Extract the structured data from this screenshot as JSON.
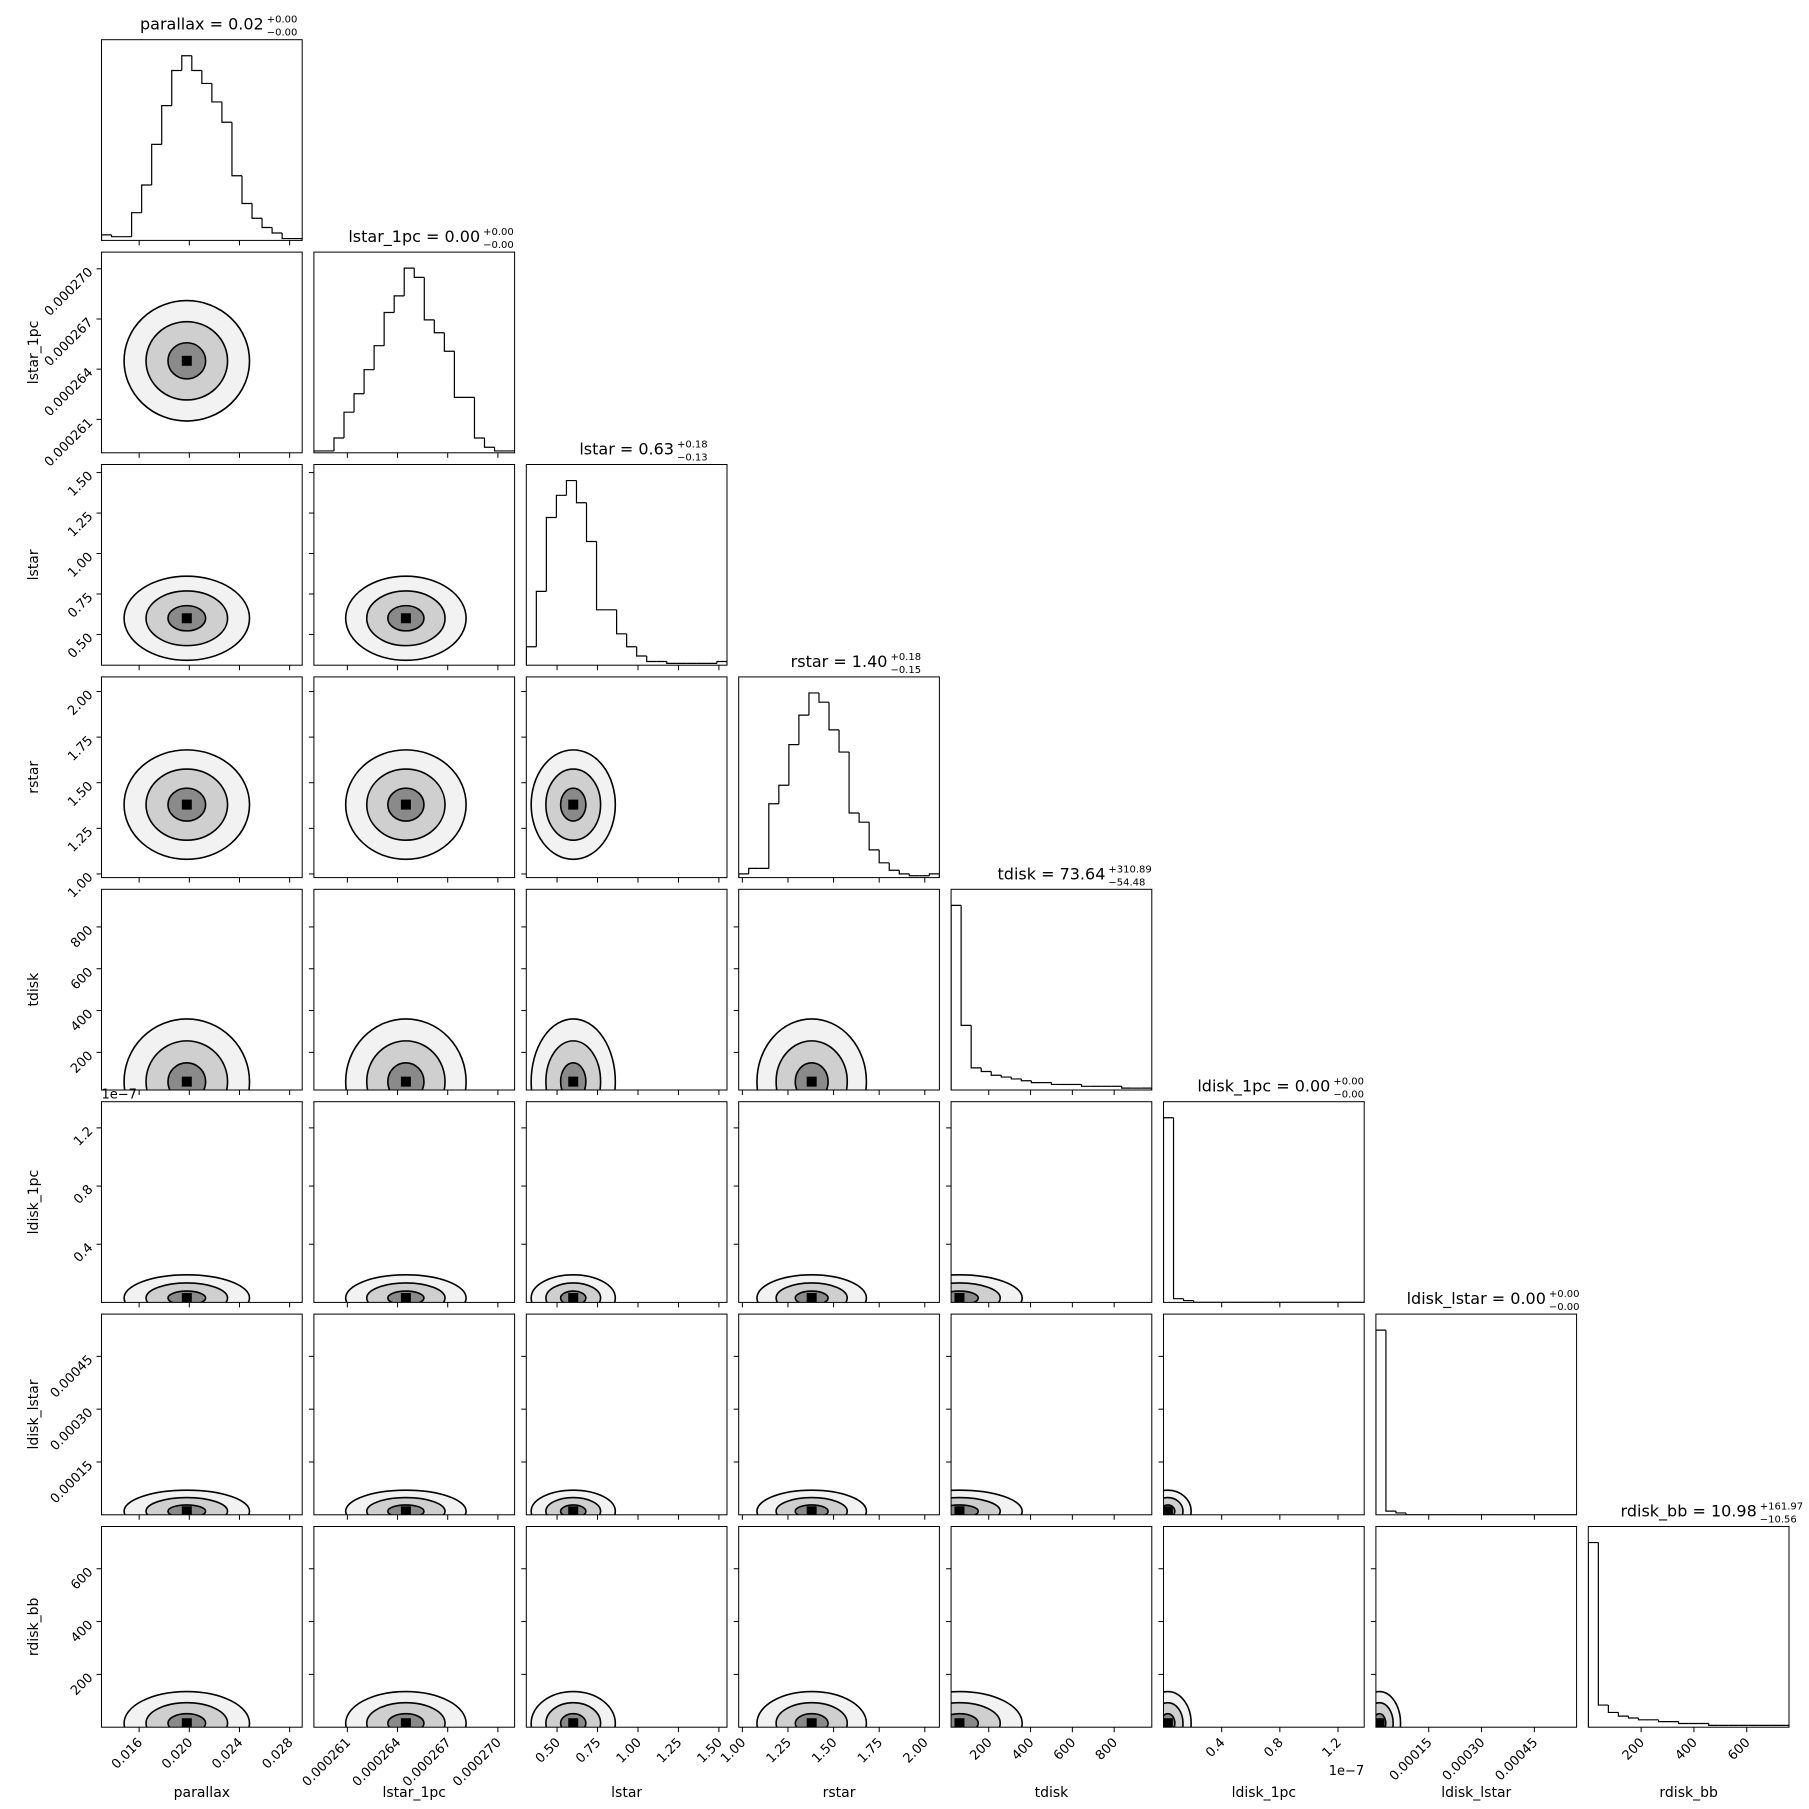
{
  "chart_data": {
    "type": "corner",
    "params": [
      {
        "name": "parallax",
        "title": "parallax = 0.02",
        "title_plus": "+0.00",
        "title_minus": "−0.00",
        "lim": [
          0.013,
          0.029
        ],
        "ticks": [
          0.016,
          {
            "value": 0.02,
            "label": "0.020"
          },
          0.024,
          0.028
        ],
        "bins": [
          0.013,
          0.0138,
          0.0146,
          0.0154,
          0.0162,
          0.017,
          0.0178,
          0.0186,
          0.0194,
          0.0202,
          0.021,
          0.0218,
          0.0226,
          0.0234,
          0.0242,
          0.025,
          0.0258,
          0.0266,
          0.0274,
          0.0282,
          0.029
        ],
        "counts": [
          3,
          2,
          2,
          15,
          30,
          52,
          73,
          92,
          100,
          92,
          85,
          75,
          64,
          35,
          20,
          12,
          7,
          4,
          1,
          1
        ],
        "peak": 0.0198,
        "spread": 0.0025
      },
      {
        "name": "lstar_1pc",
        "title": "lstar_1pc = 0.00",
        "title_plus": "+0.00",
        "title_minus": "−0.00",
        "lim": [
          0.000259,
          0.000271
        ],
        "ticks": [
          0.000261,
          0.000264,
          0.000267,
          {
            "value": 0.00027,
            "label": "0.000270"
          }
        ],
        "bins": [
          0.000259,
          0.0002596,
          0.0002602,
          0.0002608,
          0.0002614,
          0.000262,
          0.0002626,
          0.0002632,
          0.0002638,
          0.0002644,
          0.000265,
          0.0002656,
          0.0002662,
          0.0002668,
          0.0002674,
          0.000268,
          0.0002686,
          0.0002692,
          0.0002698,
          0.0002704,
          0.000271
        ],
        "counts": [
          1,
          1,
          8,
          22,
          32,
          45,
          58,
          76,
          85,
          100,
          95,
          72,
          65,
          55,
          30,
          30,
          8,
          3,
          1,
          1
        ],
        "peak": 0.0002645,
        "spread": 1.8e-06
      },
      {
        "name": "lstar",
        "title": "lstar = 0.63",
        "title_plus": "+0.18",
        "title_minus": "−0.13",
        "lim": [
          0.31,
          1.55
        ],
        "ticks": [
          {
            "value": 0.5,
            "label": "0.50"
          },
          0.75,
          {
            "value": 1,
            "label": "1.00"
          },
          1.25,
          {
            "value": 1.5,
            "label": "1.50"
          }
        ],
        "bins": [
          0.31,
          0.372,
          0.434,
          0.496,
          0.558,
          0.62,
          0.682,
          0.744,
          0.806,
          0.868,
          0.93,
          0.992,
          1.054,
          1.116,
          1.178,
          1.24,
          1.302,
          1.364,
          1.426,
          1.488,
          1.55
        ],
        "counts": [
          10,
          40,
          80,
          92,
          100,
          88,
          67,
          30,
          30,
          17,
          10,
          5,
          2,
          2,
          1,
          1,
          1,
          1,
          1,
          2
        ],
        "peak": 0.6,
        "spread": 0.13
      },
      {
        "name": "rstar",
        "title": "rstar = 1.40",
        "title_plus": "+0.18",
        "title_minus": "−0.15",
        "lim": [
          0.98,
          2.08
        ],
        "ticks": [
          {
            "value": 1,
            "label": "1.00"
          },
          1.25,
          {
            "value": 1.5,
            "label": "1.50"
          },
          1.75,
          {
            "value": 2,
            "label": "2.00"
          }
        ],
        "bins": [
          0.98,
          1.035,
          1.09,
          1.145,
          1.2,
          1.255,
          1.31,
          1.365,
          1.42,
          1.475,
          1.53,
          1.585,
          1.64,
          1.695,
          1.75,
          1.805,
          1.86,
          1.915,
          1.97,
          2.025,
          2.08
        ],
        "counts": [
          2,
          5,
          5,
          40,
          50,
          72,
          88,
          100,
          95,
          80,
          68,
          35,
          30,
          15,
          8,
          4,
          2,
          1,
          1,
          2
        ],
        "peak": 1.38,
        "spread": 0.15
      },
      {
        "name": "tdisk",
        "title": "tdisk = 73.64",
        "title_plus": "+310.89",
        "title_minus": "−54.48",
        "lim": [
          20,
          980
        ],
        "ticks": [
          200,
          400,
          600,
          800
        ],
        "bins": [
          20,
          68,
          116,
          164,
          212,
          260,
          308,
          356,
          404,
          452,
          500,
          548,
          596,
          644,
          692,
          740,
          788,
          836,
          884,
          932,
          980
        ],
        "counts": [
          100,
          35,
          12,
          10,
          8,
          7,
          6,
          5,
          4,
          4,
          3,
          3,
          3,
          2,
          2,
          2,
          2,
          1,
          1,
          1
        ],
        "peak": 60,
        "spread": 150
      },
      {
        "name": "ldisk_1pc",
        "title": "ldisk_1pc = 0.00",
        "title_plus": "+0.00",
        "title_minus": "−0.00",
        "offset_label": "1e−7",
        "lim": [
          0,
          1.38e-07
        ],
        "ticks": [
          {
            "value": 4e-08,
            "label": "0.4"
          },
          {
            "value": 8e-08,
            "label": "0.8"
          },
          {
            "value": 1.2e-07,
            "label": "1.2"
          }
        ],
        "bins": [
          0,
          6.9e-09,
          1.38e-08,
          2.07e-08,
          2.76e-08,
          3.45e-08,
          4.14e-08,
          4.83e-08,
          5.52e-08,
          6.21e-08,
          6.9e-08,
          7.59e-08,
          8.28e-08,
          8.97e-08,
          9.66e-08,
          1.035e-07,
          1.104e-07,
          1.173e-07,
          1.242e-07,
          1.311e-07,
          1.38e-07
        ],
        "counts": [
          100,
          2,
          1,
          0,
          0,
          0,
          0,
          0,
          0,
          0,
          0,
          0,
          0,
          0,
          0,
          0,
          0,
          0,
          0,
          0
        ],
        "peak": 3e-09,
        "spread": 8e-09
      },
      {
        "name": "ldisk_lstar",
        "title": "ldisk_lstar = 0.00",
        "title_plus": "+0.00",
        "title_minus": "−0.00",
        "lim": [
          0,
          0.00057
        ],
        "ticks": [
          0.00015,
          {
            "value": 0.0003,
            "label": "0.00030"
          },
          0.00045
        ],
        "bins": [
          0,
          2.85e-05,
          5.7e-05,
          8.55e-05,
          0.000114,
          0.0001425,
          0.000171,
          0.0001995,
          0.000228,
          0.0002565,
          0.000285,
          0.0003135,
          0.000342,
          0.0003705,
          0.000399,
          0.0004275,
          0.000456,
          0.0004845,
          0.000513,
          0.0005415,
          0.00057
        ],
        "counts": [
          100,
          2,
          1,
          0,
          0,
          0,
          0,
          0,
          0,
          0,
          0,
          0,
          0,
          0,
          0,
          0,
          0,
          0,
          0,
          0
        ],
        "peak": 1e-05,
        "spread": 3e-05
      },
      {
        "name": "rdisk_bb",
        "title": "rdisk_bb = 10.98",
        "title_plus": "+161.97",
        "title_minus": "−10.56",
        "lim": [
          0,
          760
        ],
        "ticks": [
          200,
          400,
          600
        ],
        "bins": [
          0,
          38,
          76,
          114,
          152,
          190,
          228,
          266,
          304,
          342,
          380,
          418,
          456,
          494,
          532,
          570,
          608,
          646,
          684,
          722,
          760
        ],
        "counts": [
          100,
          12,
          8,
          6,
          5,
          4,
          4,
          3,
          3,
          2,
          2,
          2,
          1,
          1,
          1,
          1,
          1,
          1,
          1,
          1
        ],
        "peak": 15,
        "spread": 60
      }
    ]
  }
}
